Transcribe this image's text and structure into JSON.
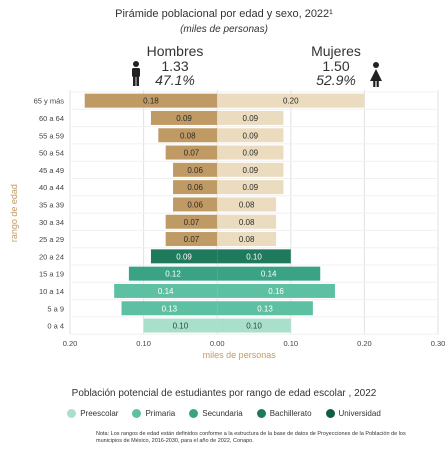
{
  "header": {
    "title": "Pirámide poblacional por edad y sexo, 2022¹",
    "subtitle": "(miles de personas)"
  },
  "male": {
    "label": "Hombres",
    "total": "1.33",
    "pct": "47.1%"
  },
  "female": {
    "label": "Mujeres",
    "total": "1.50",
    "pct": "52.9%"
  },
  "chart_data": {
    "type": "bar",
    "orientation": "horizontal-pyramid",
    "categories": [
      "65 y más",
      "60 a 64",
      "55 a 59",
      "50 a 54",
      "45 a 49",
      "40 a 44",
      "35 a 39",
      "30 a 34",
      "25 a 29",
      "20 a 24",
      "15 a 19",
      "10 a 14",
      "5 a 9",
      "0 a 4"
    ],
    "series": [
      {
        "name": "Hombres",
        "values": [
          0.18,
          0.09,
          0.08,
          0.07,
          0.06,
          0.06,
          0.06,
          0.07,
          0.07,
          0.09,
          0.12,
          0.14,
          0.13,
          0.1
        ]
      },
      {
        "name": "Mujeres",
        "values": [
          0.2,
          0.09,
          0.09,
          0.09,
          0.09,
          0.09,
          0.08,
          0.08,
          0.08,
          0.1,
          0.14,
          0.16,
          0.13,
          0.1
        ]
      }
    ],
    "data_labels": {
      "Hombres": [
        "0.18",
        "0.09",
        "0.08",
        "0.07",
        "0.06",
        "0.06",
        "0.06",
        "0.07",
        "0.07",
        "0.09",
        "0.12",
        "0.14",
        "0.13",
        "0.10"
      ],
      "Mujeres": [
        "0.20",
        "0.09",
        "0.09",
        "0.09",
        "0.09",
        "0.09",
        "0.08",
        "0.08",
        "0.08",
        "0.10",
        "0.14",
        "0.16",
        "0.13",
        "0.10"
      ]
    },
    "x_ticks": [
      -0.2,
      -0.1,
      0.0,
      0.1,
      0.2,
      0.3
    ],
    "x_tick_labels": [
      "0.20",
      "0.10",
      "0.00",
      "0.10",
      "0.20",
      "0.30"
    ],
    "xlim": [
      -0.2,
      0.3
    ],
    "xlabel": "miles de personas",
    "ylabel": "rango de edad",
    "grid": true,
    "category_group": [
      "adult",
      "adult",
      "adult",
      "adult",
      "adult",
      "adult",
      "adult",
      "adult",
      "adult",
      "bachillerato",
      "secundaria",
      "primaria",
      "primaria",
      "preescolar"
    ],
    "group_colors": {
      "adult_male": "#c09a64",
      "adult_female": "#ecdcbf",
      "preescolar": "#a9dfcb",
      "primaria": "#5ec0a2",
      "secundaria": "#3aa385",
      "bachillerato": "#1f7a5d",
      "universidad": "#0f5c43"
    }
  },
  "school_legend": {
    "title": "Población potencial de estudiantes por rango de edad escolar , 2022",
    "items": [
      {
        "label": "Preescolar",
        "color": "#a9dfcb"
      },
      {
        "label": "Primaria",
        "color": "#5ec0a2"
      },
      {
        "label": "Secundaria",
        "color": "#3aa385"
      },
      {
        "label": "Bachillerato",
        "color": "#1f7a5d"
      },
      {
        "label": "Universidad",
        "color": "#0f5c43"
      }
    ]
  },
  "note": "Nota: Los rangos de edad están definidos conforme a la estructura de la base de datos de Proyecciones de la Población de los municipios de México, 2016-2030, para el año de 2022, Conapo."
}
